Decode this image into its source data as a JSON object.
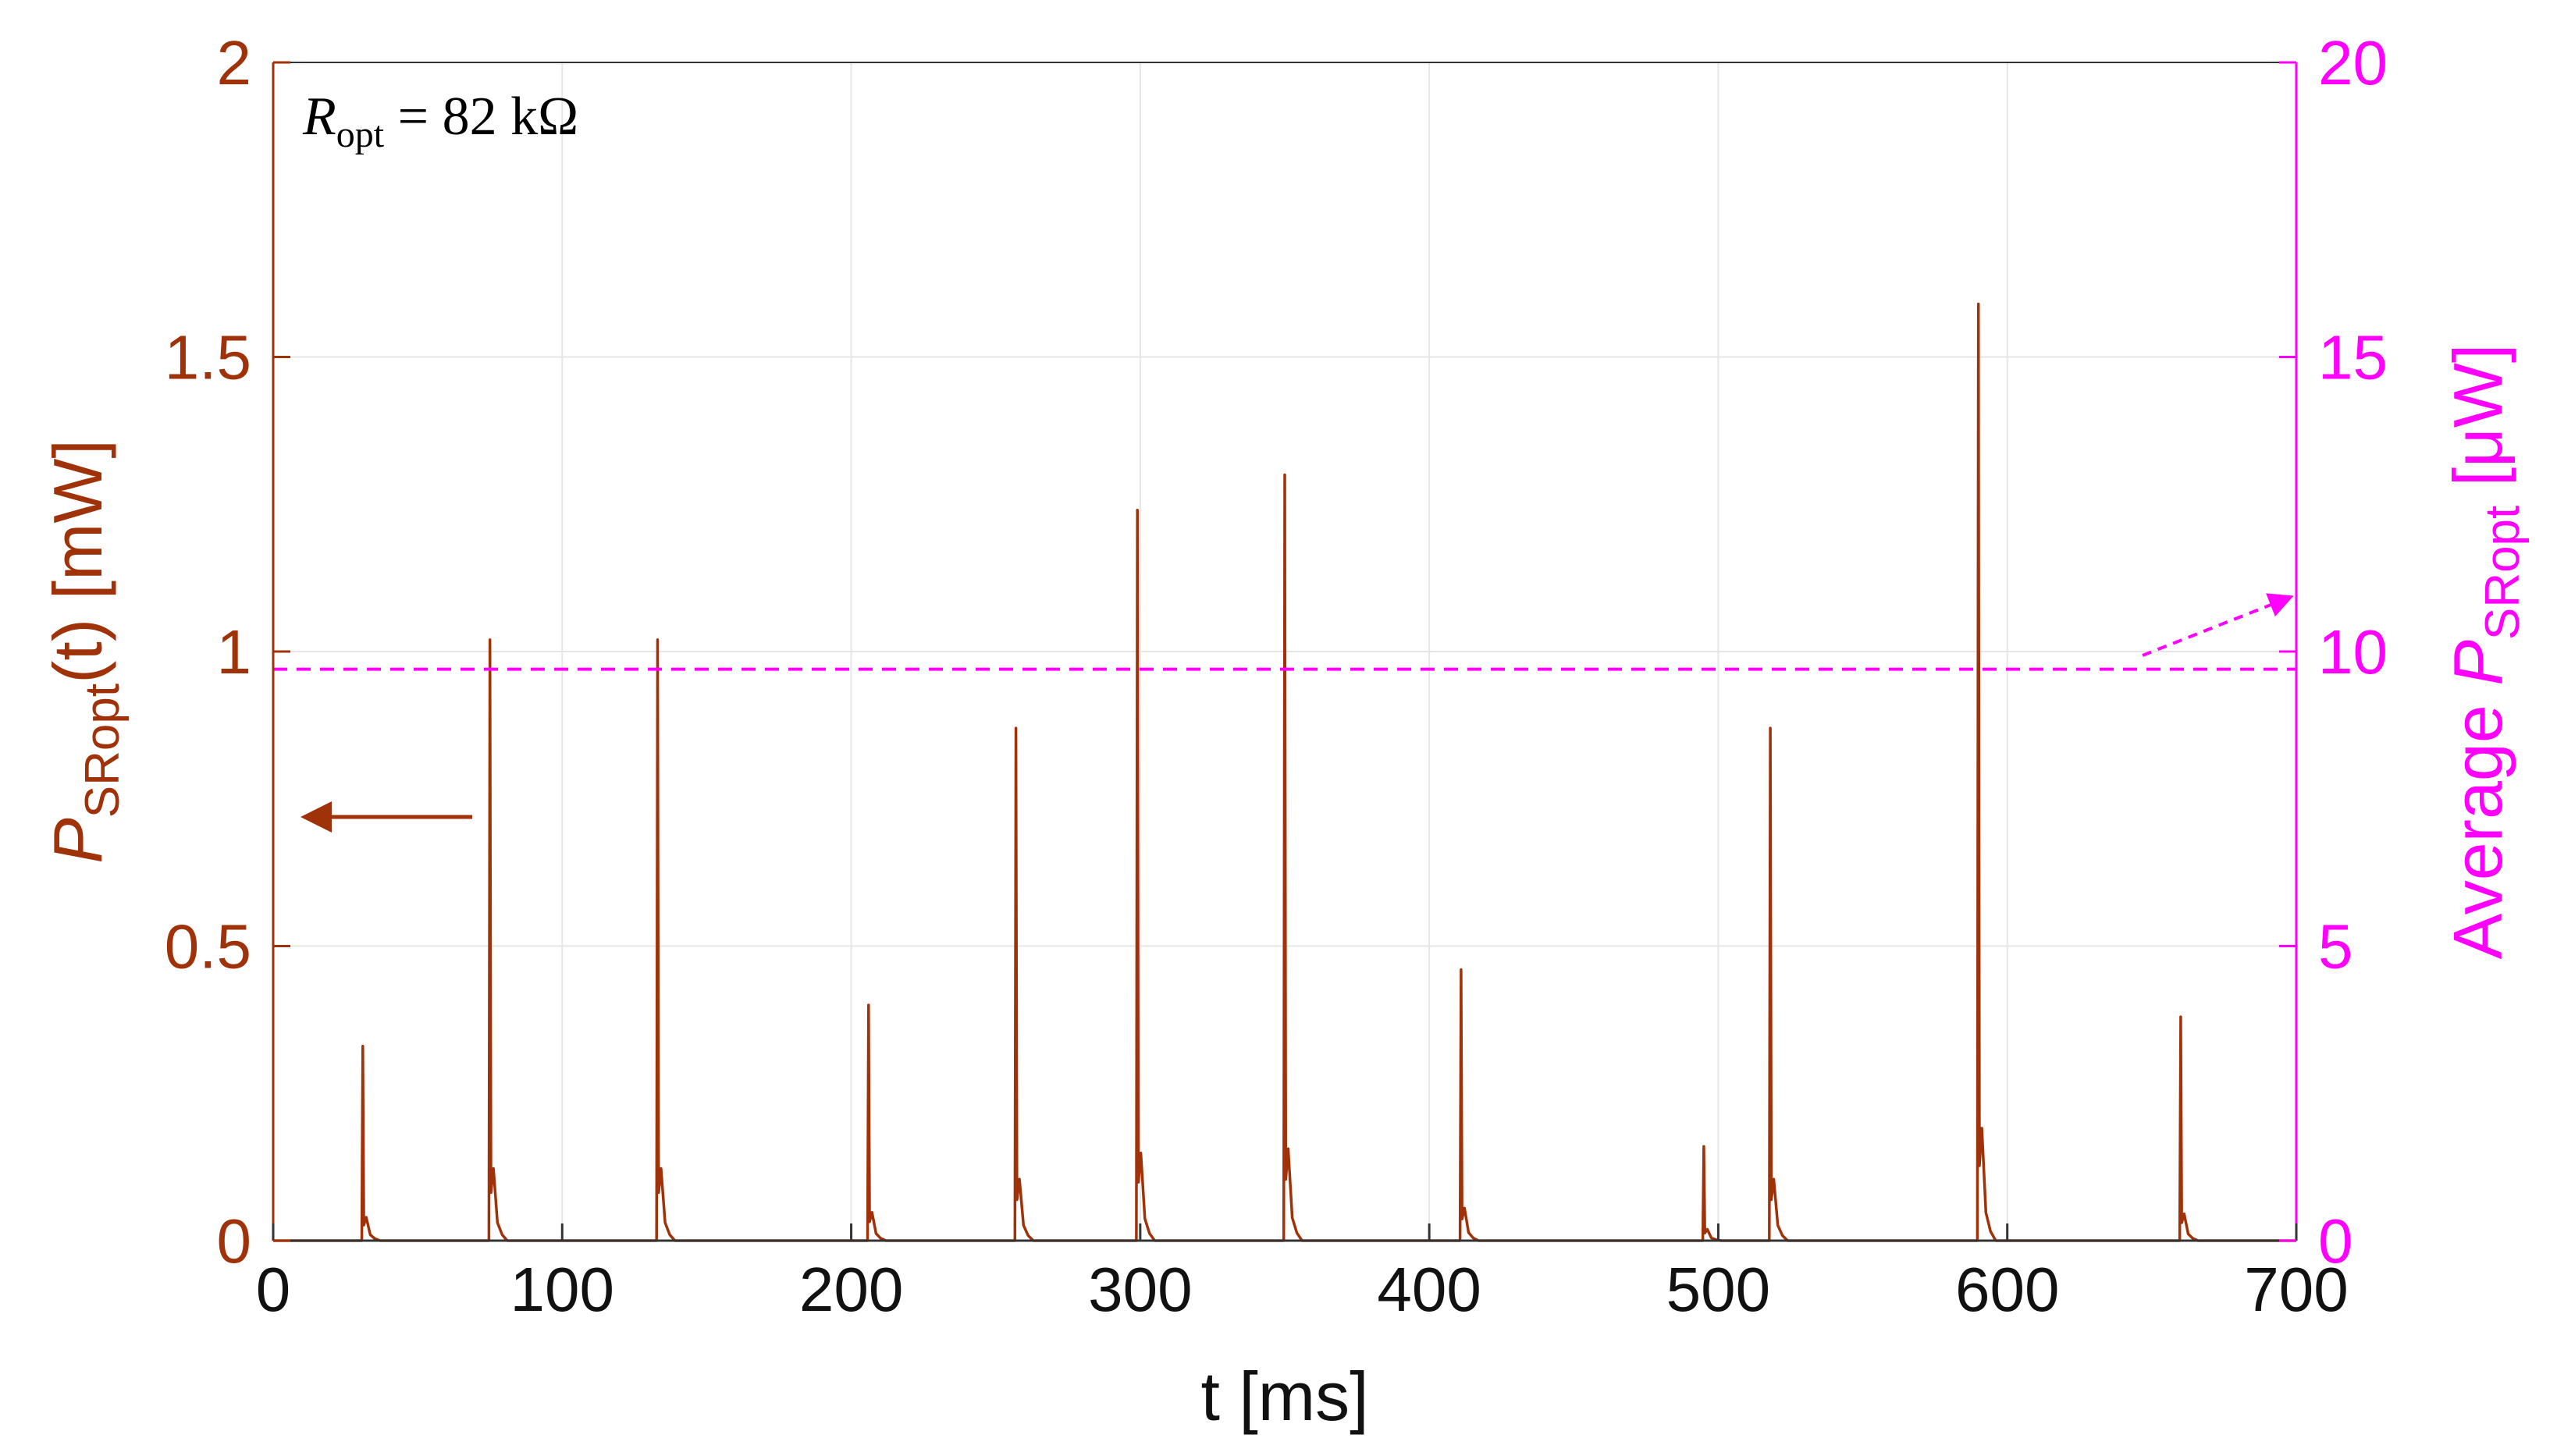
{
  "chart_data": {
    "type": "line",
    "annotation": {
      "symbol": "R",
      "subscript": "opt",
      "rest": " = 82 kΩ"
    },
    "xlabel": "t [ms]",
    "ylabel_left": {
      "base": "P",
      "sub": "SRopt",
      "rest": "(t) [mW]"
    },
    "ylabel_right": {
      "base": "Average ",
      "sym": "P",
      "sub": "SRopt",
      "rest": " [μW]"
    },
    "xlim": [
      0,
      700
    ],
    "ylim_left": [
      0,
      2
    ],
    "ylim_right": [
      0,
      20
    ],
    "x_ticks": [
      "0",
      "100",
      "200",
      "300",
      "400",
      "500",
      "600",
      "700"
    ],
    "x_tick_values": [
      0,
      100,
      200,
      300,
      400,
      500,
      600,
      700
    ],
    "y_left_ticks": [
      "0",
      "0.5",
      "1",
      "1.5",
      "2"
    ],
    "y_left_tick_values": [
      0,
      0.5,
      1,
      1.5,
      2
    ],
    "y_right_ticks": [
      "0",
      "5",
      "10",
      "15",
      "20"
    ],
    "y_right_tick_values": [
      0,
      5,
      10,
      15,
      20
    ],
    "grid": true,
    "series": [
      {
        "axis": "left",
        "color": "#a0320a",
        "style": "solid",
        "peaks": [
          {
            "t": 31,
            "p": 0.33
          },
          {
            "t": 75,
            "p": 1.02
          },
          {
            "t": 133,
            "p": 1.02
          },
          {
            "t": 206,
            "p": 0.4
          },
          {
            "t": 257,
            "p": 0.87
          },
          {
            "t": 299,
            "p": 1.24
          },
          {
            "t": 350,
            "p": 1.3
          },
          {
            "t": 411,
            "p": 0.46
          },
          {
            "t": 495,
            "p": 0.16
          },
          {
            "t": 518,
            "p": 0.87
          },
          {
            "t": 590,
            "p": 1.59
          },
          {
            "t": 660,
            "p": 0.38
          }
        ]
      },
      {
        "axis": "right",
        "color": "#ff00ff",
        "style": "dashed",
        "average_uW": 9.7
      }
    ],
    "colors": {
      "left_axis": "#a0320a",
      "right_axis": "#ff00ff",
      "x_axis": "#111111",
      "grid": "#e6e6e6"
    }
  }
}
